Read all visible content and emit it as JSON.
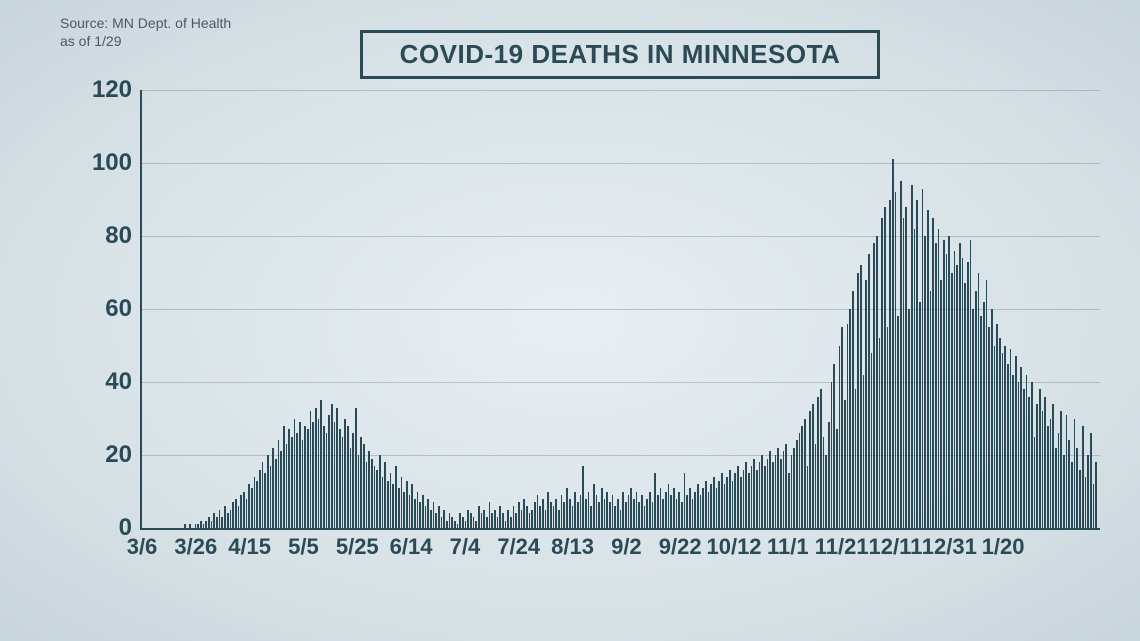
{
  "source": {
    "line1": "Source: MN Dept. of Health",
    "line2": "as of 1/29"
  },
  "chart": {
    "type": "bar",
    "title": "COVID-19 DEATHS IN MINNESOTA",
    "title_fontsize": 26,
    "title_color": "#2a4a55",
    "title_border_color": "#2a4a55",
    "background": "radial-gradient(#e8eff2,#c8d5db)",
    "bar_color": "#2a4a55",
    "axis_color": "#2a4a55",
    "grid_color": "rgba(42,74,85,0.25)",
    "label_fontsize": 24,
    "label_color": "#2a4a55",
    "ylim": [
      0,
      120
    ],
    "ytick_step": 20,
    "yticks": [
      0,
      20,
      40,
      60,
      80,
      100,
      120
    ],
    "xticks": [
      "3/6",
      "3/26",
      "4/15",
      "5/5",
      "5/25",
      "6/14",
      "7/4",
      "7/24",
      "8/13",
      "9/2",
      "9/22",
      "10/12",
      "11/1",
      "11/21",
      "12/11",
      "12/31",
      "1/20"
    ],
    "xtick_interval_days": 20,
    "values": [
      0,
      0,
      0,
      0,
      0,
      0,
      0,
      0,
      0,
      0,
      0,
      0,
      0,
      0,
      0,
      1,
      0,
      1,
      0,
      1,
      1,
      2,
      1,
      2,
      3,
      2,
      4,
      3,
      5,
      3,
      6,
      4,
      5,
      7,
      8,
      6,
      9,
      10,
      8,
      12,
      11,
      14,
      13,
      16,
      18,
      15,
      20,
      17,
      22,
      19,
      24,
      21,
      28,
      23,
      27,
      25,
      30,
      26,
      29,
      24,
      28,
      27,
      32,
      29,
      33,
      30,
      35,
      28,
      26,
      31,
      34,
      29,
      33,
      27,
      25,
      30,
      28,
      22,
      26,
      33,
      20,
      25,
      23,
      18,
      21,
      19,
      17,
      16,
      20,
      14,
      18,
      13,
      15,
      12,
      17,
      11,
      14,
      10,
      13,
      9,
      12,
      8,
      10,
      7,
      9,
      6,
      8,
      5,
      7,
      4,
      6,
      3,
      5,
      2,
      4,
      3,
      2,
      1,
      4,
      3,
      2,
      5,
      4,
      3,
      2,
      6,
      4,
      5,
      3,
      7,
      4,
      5,
      3,
      6,
      4,
      2,
      5,
      3,
      6,
      4,
      7,
      5,
      8,
      6,
      4,
      5,
      7,
      9,
      6,
      8,
      5,
      10,
      7,
      6,
      8,
      5,
      9,
      7,
      11,
      8,
      6,
      10,
      7,
      9,
      17,
      8,
      10,
      6,
      12,
      9,
      7,
      11,
      8,
      10,
      7,
      9,
      6,
      8,
      5,
      10,
      7,
      9,
      11,
      8,
      10,
      7,
      9,
      6,
      8,
      10,
      7,
      15,
      9,
      11,
      8,
      10,
      12,
      9,
      11,
      8,
      10,
      7,
      15,
      9,
      11,
      8,
      10,
      12,
      9,
      11,
      13,
      10,
      12,
      14,
      11,
      13,
      15,
      12,
      14,
      16,
      13,
      15,
      17,
      14,
      16,
      18,
      15,
      17,
      19,
      16,
      18,
      20,
      17,
      19,
      21,
      18,
      20,
      22,
      19,
      21,
      23,
      15,
      20,
      22,
      24,
      26,
      28,
      30,
      17,
      32,
      34,
      23,
      36,
      38,
      25,
      20,
      29,
      40,
      45,
      27,
      50,
      55,
      35,
      56,
      60,
      65,
      38,
      70,
      72,
      42,
      68,
      75,
      48,
      78,
      80,
      52,
      85,
      88,
      55,
      90,
      101,
      92,
      58,
      95,
      85,
      88,
      60,
      94,
      82,
      90,
      62,
      93,
      80,
      87,
      65,
      85,
      78,
      82,
      68,
      79,
      75,
      80,
      70,
      76,
      72,
      78,
      74,
      67,
      73,
      79,
      60,
      65,
      70,
      58,
      62,
      68,
      55,
      60,
      50,
      56,
      52,
      48,
      50,
      45,
      49,
      42,
      47,
      40,
      44,
      38,
      42,
      36,
      40,
      25,
      34,
      38,
      32,
      36,
      28,
      30,
      34,
      22,
      26,
      32,
      20,
      31,
      24,
      18,
      30,
      22,
      16,
      28,
      14,
      20,
      26,
      12,
      18
    ]
  }
}
